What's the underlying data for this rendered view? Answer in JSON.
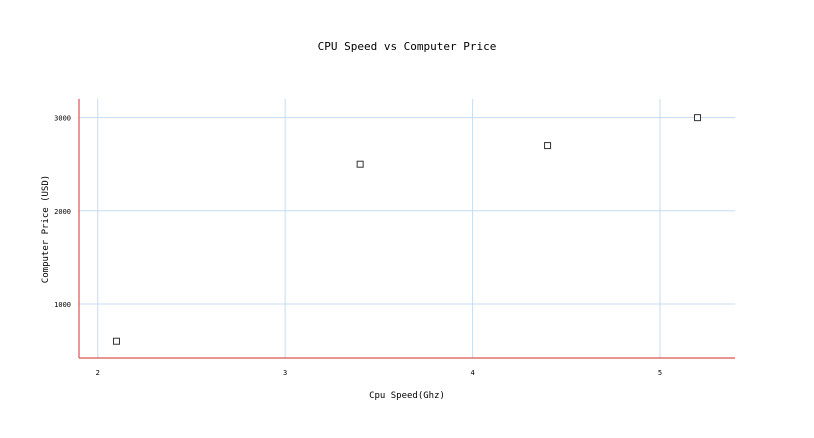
{
  "chart_data": {
    "type": "scatter",
    "title": "CPU Speed vs Computer Price",
    "xlabel": "Cpu Speed(Ghz)",
    "ylabel": "Computer Price (USD)",
    "xlim": [
      1.9,
      5.4
    ],
    "ylim": [
      420,
      3200
    ],
    "x_ticks": [
      2,
      3,
      4,
      5
    ],
    "y_ticks": [
      1000,
      2000,
      3000
    ],
    "grid": true,
    "series": [
      {
        "x": [
          2.1,
          3.4,
          4.4,
          5.2
        ],
        "y": [
          600,
          2500,
          2700,
          3000
        ]
      }
    ],
    "colors": {
      "grid": "#c6dcf0",
      "axis": "#d9534f",
      "marker": "#333333"
    }
  }
}
